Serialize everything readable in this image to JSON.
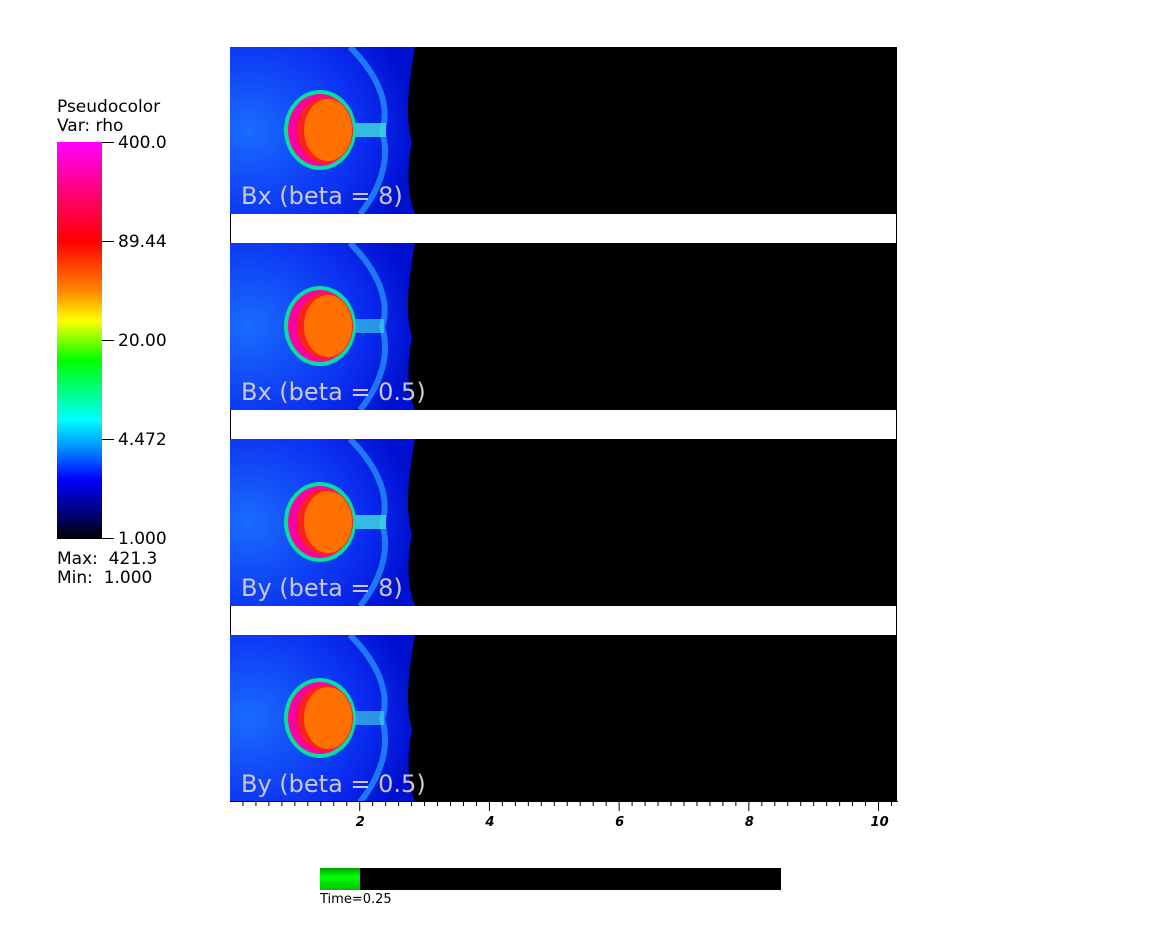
{
  "legend": {
    "title_line1": "Pseudocolor",
    "title_line2": "Var: rho",
    "tick_labels": [
      "400.0",
      "89.44",
      "20.00",
      "4.472",
      "1.000"
    ],
    "max_text": "Max:  421.3",
    "min_text": "Min:  1.000",
    "colors": [
      "#ff00ff",
      "#ff0000",
      "#ff8000",
      "#ffff00",
      "#00ff00",
      "#00ffff",
      "#0000ff",
      "#000000"
    ]
  },
  "panels": [
    {
      "label": "Bx (beta = 8)"
    },
    {
      "label": "Bx (beta = 0.5)"
    },
    {
      "label": "By (beta = 8)"
    },
    {
      "label": "By (beta = 0.5)"
    }
  ],
  "chart_data": {
    "type": "heatmap",
    "variable": "rho",
    "colorbar_ticks": [
      400.0,
      89.44,
      20.0,
      4.472,
      1.0
    ],
    "color_scale": "log",
    "data_max": 421.3,
    "data_min": 1.0,
    "xlim": [
      0,
      10.3
    ],
    "x_ticks": [
      2,
      4,
      6,
      8,
      10
    ],
    "x_tick_labels": [
      "2",
      "4",
      "6",
      "8",
      "10"
    ],
    "panels": [
      "Bx (beta = 8)",
      "Bx (beta = 0.5)",
      "By (beta = 8)",
      "By (beta = 0.5)"
    ]
  },
  "time": {
    "label": "Time=0.25",
    "fraction": 0.087,
    "fill_color": "#00ff00"
  }
}
